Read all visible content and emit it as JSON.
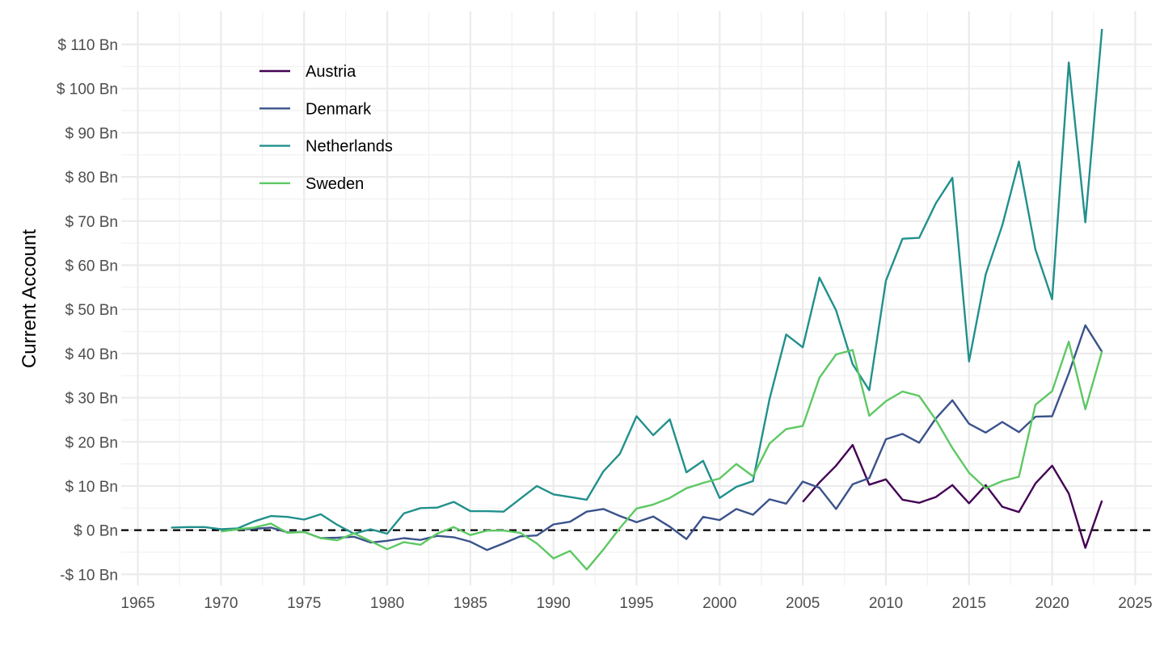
{
  "chart_data": {
    "type": "line",
    "title": "",
    "xlabel": "",
    "ylabel": "Current Account",
    "xlim": [
      1964,
      2026
    ],
    "ylim": [
      -12.5,
      117.5
    ],
    "x_ticks": [
      1965,
      1970,
      1975,
      1980,
      1985,
      1990,
      1995,
      2000,
      2005,
      2010,
      2015,
      2020,
      2025
    ],
    "x_tick_labels": [
      "1965",
      "1970",
      "1975",
      "1980",
      "1985",
      "1990",
      "1995",
      "2000",
      "2005",
      "2010",
      "2015",
      "2020",
      "2025"
    ],
    "y_ticks": [
      -10,
      0,
      10,
      20,
      30,
      40,
      50,
      60,
      70,
      80,
      90,
      100,
      110
    ],
    "y_tick_labels": [
      "-$ 10 Bn",
      "$ 0 Bn",
      "$ 10 Bn",
      "$ 20 Bn",
      "$ 30 Bn",
      "$ 40 Bn",
      "$ 50 Bn",
      "$ 60 Bn",
      "$ 70 Bn",
      "$ 80 Bn",
      "$ 90 Bn",
      "$ 100 Bn",
      "$ 110 Bn"
    ],
    "grid": true,
    "legend_position": "top-left",
    "reference_line": {
      "y": 0,
      "style": "dashed",
      "color": "#000000"
    },
    "series": [
      {
        "name": "Austria",
        "color": "#440154",
        "x": [
          2005,
          2006,
          2007,
          2008,
          2009,
          2010,
          2011,
          2012,
          2013,
          2014,
          2015,
          2016,
          2017,
          2018,
          2019,
          2020,
          2021,
          2022,
          2023
        ],
        "values": [
          6.4,
          10.8,
          14.6,
          19.3,
          10.3,
          11.5,
          6.9,
          6.2,
          7.5,
          10.2,
          6.1,
          10.2,
          5.3,
          4.1,
          10.6,
          14.6,
          8.3,
          -4.0,
          6.7
        ]
      },
      {
        "name": "Denmark",
        "color": "#3b528b",
        "x": [
          1970,
          1971,
          1972,
          1973,
          1974,
          1975,
          1976,
          1977,
          1978,
          1979,
          1980,
          1981,
          1982,
          1983,
          1984,
          1985,
          1986,
          1987,
          1988,
          1989,
          1990,
          1991,
          1992,
          1993,
          1994,
          1995,
          1996,
          1997,
          1998,
          1999,
          2000,
          2001,
          2002,
          2003,
          2004,
          2005,
          2006,
          2007,
          2008,
          2009,
          2010,
          2011,
          2012,
          2013,
          2014,
          2015,
          2016,
          2017,
          2018,
          2019,
          2020,
          2021,
          2022,
          2023
        ],
        "values": [
          -0.2,
          0.2,
          0.3,
          0.6,
          -0.5,
          -0.4,
          -1.8,
          -1.7,
          -1.5,
          -2.8,
          -2.4,
          -1.8,
          -2.2,
          -1.3,
          -1.6,
          -2.6,
          -4.5,
          -3.0,
          -1.4,
          -1.2,
          1.3,
          1.9,
          4.2,
          4.8,
          3.2,
          1.8,
          3.1,
          0.8,
          -2.0,
          3.0,
          2.3,
          4.8,
          3.5,
          7.0,
          6.0,
          11.0,
          9.6,
          4.8,
          10.4,
          11.8,
          20.6,
          21.8,
          19.8,
          25.3,
          29.4,
          24.1,
          22.1,
          24.5,
          22.2,
          25.7,
          25.8,
          35.5,
          46.4,
          40.4
        ]
      },
      {
        "name": "Netherlands",
        "color": "#21908c",
        "x": [
          1967,
          1968,
          1969,
          1970,
          1971,
          1972,
          1973,
          1974,
          1975,
          1976,
          1977,
          1978,
          1979,
          1980,
          1981,
          1982,
          1983,
          1984,
          1985,
          1986,
          1987,
          1988,
          1989,
          1990,
          1991,
          1992,
          1993,
          1994,
          1995,
          1996,
          1997,
          1998,
          1999,
          2000,
          2001,
          2002,
          2003,
          2004,
          2005,
          2006,
          2007,
          2008,
          2009,
          2010,
          2011,
          2012,
          2013,
          2014,
          2015,
          2016,
          2017,
          2018,
          2019,
          2020,
          2021,
          2022,
          2023
        ],
        "values": [
          0.6,
          0.7,
          0.7,
          0.2,
          0.4,
          2.0,
          3.2,
          3.0,
          2.4,
          3.6,
          1.2,
          -0.8,
          0.2,
          -0.8,
          3.8,
          5.0,
          5.1,
          6.4,
          4.3,
          4.3,
          4.2,
          7.1,
          10.0,
          8.1,
          7.5,
          6.9,
          13.3,
          17.3,
          25.8,
          21.5,
          25.1,
          13.1,
          15.7,
          7.3,
          9.8,
          11.1,
          29.7,
          44.3,
          41.4,
          57.2,
          49.8,
          37.6,
          31.7,
          56.5,
          66.0,
          66.2,
          74.0,
          79.8,
          38.2,
          57.9,
          69.0,
          83.5,
          63.5,
          52.3,
          105.9,
          69.7,
          113.5
        ]
      },
      {
        "name": "Sweden",
        "color": "#5dc863",
        "x": [
          1970,
          1971,
          1972,
          1973,
          1974,
          1975,
          1976,
          1977,
          1978,
          1979,
          1980,
          1981,
          1982,
          1983,
          1984,
          1985,
          1986,
          1987,
          1988,
          1989,
          1990,
          1991,
          1992,
          1993,
          1994,
          1995,
          1996,
          1997,
          1998,
          1999,
          2000,
          2001,
          2002,
          2003,
          2004,
          2005,
          2006,
          2007,
          2008,
          2009,
          2010,
          2011,
          2012,
          2013,
          2014,
          2015,
          2016,
          2017,
          2018,
          2019,
          2020,
          2021,
          2022,
          2023
        ],
        "values": [
          -0.3,
          0.2,
          0.6,
          1.5,
          -0.6,
          -0.4,
          -1.8,
          -2.3,
          -0.7,
          -2.5,
          -4.3,
          -2.7,
          -3.3,
          -0.8,
          0.7,
          -1.1,
          -0.1,
          -0.1,
          -0.6,
          -3.0,
          -6.4,
          -4.7,
          -8.9,
          -4.4,
          0.5,
          4.9,
          5.8,
          7.3,
          9.5,
          10.7,
          11.7,
          15.0,
          12.2,
          19.6,
          22.9,
          23.6,
          34.5,
          39.8,
          40.8,
          25.9,
          29.2,
          31.4,
          30.4,
          25.0,
          18.6,
          13.0,
          9.5,
          11.1,
          12.1,
          28.4,
          31.5,
          42.7,
          27.4,
          40.5
        ]
      }
    ]
  }
}
